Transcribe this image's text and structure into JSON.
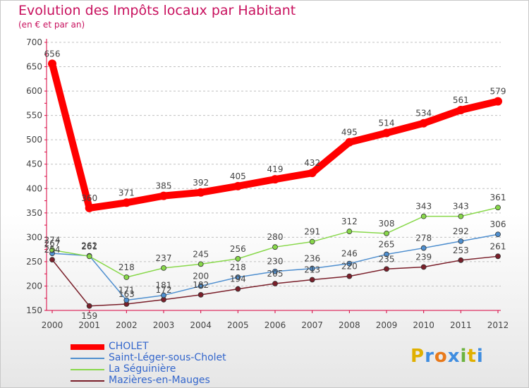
{
  "title": "Evolution des Impôts locaux par Habitant",
  "subtitle": "(en € et par an)",
  "logo": {
    "text": "Proxiti",
    "letters": [
      "P",
      "r",
      "o",
      "x",
      "i",
      "t",
      "i"
    ],
    "colors": [
      "#e0b000",
      "#3f8de0",
      "#e8791a",
      "#3f8de0",
      "#6cb33e",
      "#e0b000",
      "#3f8de0"
    ]
  },
  "colors": {
    "title": "#c8115e",
    "axis": "#d9003d",
    "grid": "#c0c0c0",
    "legend_text": "#3366cc"
  },
  "chart_data": {
    "type": "line",
    "title": "Evolution des Impôts locaux par Habitant",
    "subtitle": "(en € et par an)",
    "xlabel": "",
    "ylabel": "",
    "ylim": [
      150,
      700
    ],
    "yticks": [
      150,
      200,
      250,
      300,
      350,
      400,
      450,
      500,
      550,
      600,
      650,
      700
    ],
    "grid": true,
    "legend": "bottom-left",
    "categories": [
      "2000",
      "2001",
      "2002",
      "2003",
      "2004",
      "2005",
      "2006",
      "2007",
      "2008",
      "2009",
      "2010",
      "2011",
      "2012"
    ],
    "series": [
      {
        "name": "CHOLET",
        "color": "#ff0000",
        "values": [
          656,
          360,
          371,
          385,
          392,
          405,
          419,
          432,
          495,
          514,
          534,
          561,
          579
        ]
      },
      {
        "name": "Saint-Léger-sous-Cholet",
        "color": "#4f8fcf",
        "values": [
          267,
          262,
          171,
          181,
          200,
          218,
          230,
          236,
          246,
          265,
          278,
          292,
          306
        ]
      },
      {
        "name": "La Séguinière",
        "color": "#88d84a",
        "values": [
          274,
          261,
          218,
          237,
          245,
          256,
          280,
          291,
          312,
          308,
          343,
          343,
          361
        ]
      },
      {
        "name": "Mazières-en-Mauges",
        "color": "#7a1f2a",
        "values": [
          254,
          159,
          163,
          172,
          182,
          194,
          205,
          213,
          220,
          235,
          239,
          253,
          261
        ]
      }
    ]
  }
}
